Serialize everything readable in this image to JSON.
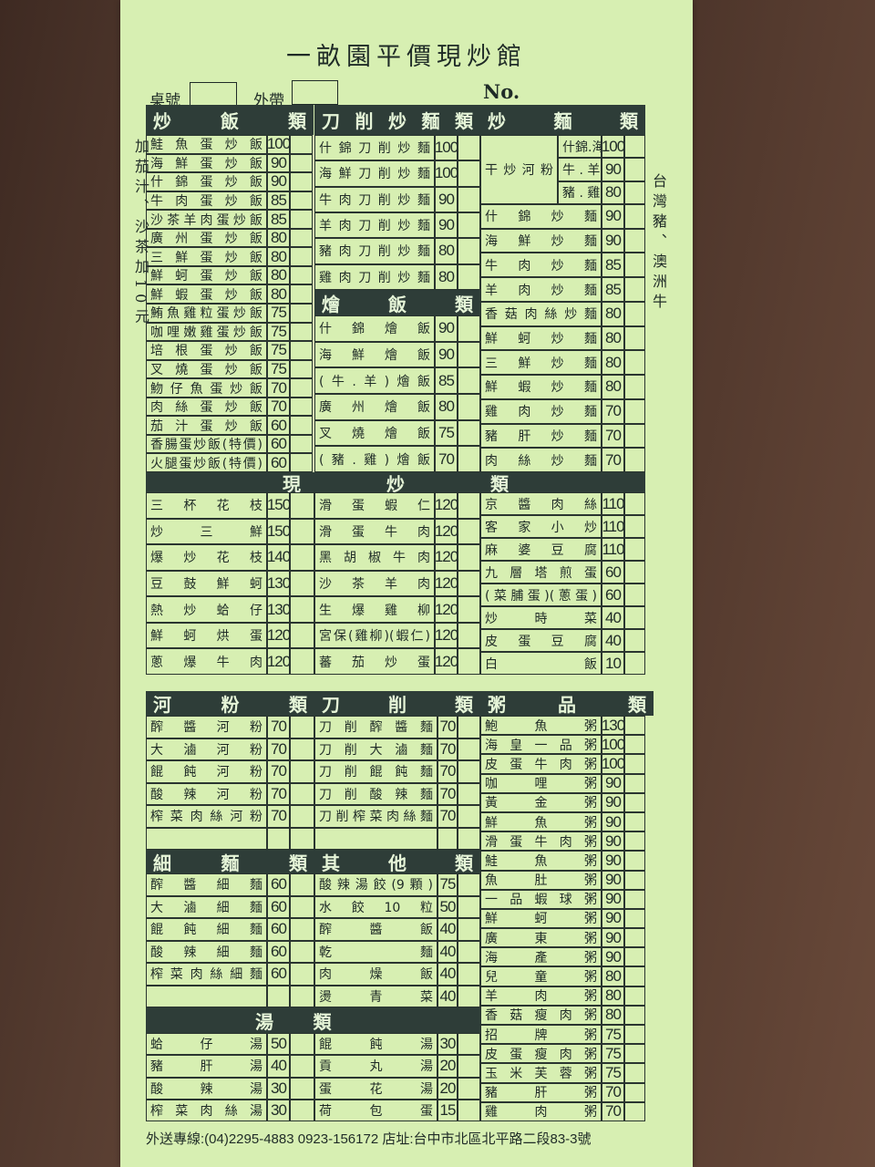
{
  "header": {
    "title": "一畝園平價現炒館",
    "table_label": "桌號",
    "takeout_label": "外帶",
    "no_label": "No."
  },
  "side_notes": {
    "left": "加茄汁、沙茶加10元",
    "right": "台灣豬、澳洲牛"
  },
  "fried_rice": {
    "title": "炒飯類",
    "items": [
      {
        "name": "鮭魚蛋炒飯",
        "price": "100"
      },
      {
        "name": "海鮮蛋炒飯",
        "price": "90"
      },
      {
        "name": "什錦蛋炒飯",
        "price": "90"
      },
      {
        "name": "牛肉蛋炒飯",
        "price": "85"
      },
      {
        "name": "沙茶羊肉蛋炒飯",
        "price": "85"
      },
      {
        "name": "廣州蛋炒飯",
        "price": "80"
      },
      {
        "name": "三鮮蛋炒飯",
        "price": "80"
      },
      {
        "name": "鮮蚵蛋炒飯",
        "price": "80"
      },
      {
        "name": "鮮蝦蛋炒飯",
        "price": "80"
      },
      {
        "name": "鮪魚雞粒蛋炒飯",
        "price": "75"
      },
      {
        "name": "咖哩嫩雞蛋炒飯",
        "price": "75"
      },
      {
        "name": "培根蛋炒飯",
        "price": "75"
      },
      {
        "name": "叉燒蛋炒飯",
        "price": "75"
      },
      {
        "name": "魩仔魚蛋炒飯",
        "price": "70"
      },
      {
        "name": "肉絲蛋炒飯",
        "price": "70"
      },
      {
        "name": "茄汁蛋炒飯",
        "price": "60"
      },
      {
        "name": "香腸蛋炒飯(特價)",
        "price": "60"
      },
      {
        "name": "火腿蛋炒飯(特價)",
        "price": "60"
      }
    ]
  },
  "knife_fried_noodles": {
    "title": "刀削炒麵類",
    "items": [
      {
        "name": "什錦刀削炒麵",
        "price": "100"
      },
      {
        "name": "海鮮刀削炒麵",
        "price": "100"
      },
      {
        "name": "牛肉刀削炒麵",
        "price": "90"
      },
      {
        "name": "羊肉刀削炒麵",
        "price": "90"
      },
      {
        "name": "豬肉刀削炒麵",
        "price": "80"
      },
      {
        "name": "雞肉刀削炒麵",
        "price": "80"
      }
    ]
  },
  "braised_rice": {
    "title": "燴飯類",
    "items": [
      {
        "name": "什錦燴飯",
        "price": "90"
      },
      {
        "name": "海鮮燴飯",
        "price": "90"
      },
      {
        "name": "(牛.羊)燴飯",
        "price": "85"
      },
      {
        "name": "廣州燴飯",
        "price": "80"
      },
      {
        "name": "叉燒燴飯",
        "price": "75"
      },
      {
        "name": "(豬.雞)燴飯",
        "price": "70"
      }
    ]
  },
  "fried_noodles": {
    "title": "炒麵類",
    "hefen": {
      "label": "干炒河粉",
      "options": [
        {
          "name": "什錦.海鮮",
          "price": "100"
        },
        {
          "name": "牛 . 羊",
          "price": "90"
        },
        {
          "name": "豬 . 雞",
          "price": "80"
        }
      ]
    },
    "items": [
      {
        "name": "什錦炒麵",
        "price": "90"
      },
      {
        "name": "海鮮炒麵",
        "price": "90"
      },
      {
        "name": "牛肉炒麵",
        "price": "85"
      },
      {
        "name": "羊肉炒麵",
        "price": "85"
      },
      {
        "name": "香菇肉絲炒麵",
        "price": "80"
      },
      {
        "name": "鮮蚵炒麵",
        "price": "80"
      },
      {
        "name": "三鮮炒麵",
        "price": "80"
      },
      {
        "name": "鮮蝦炒麵",
        "price": "80"
      },
      {
        "name": "雞肉炒麵",
        "price": "70"
      },
      {
        "name": "豬肝炒麵",
        "price": "70"
      },
      {
        "name": "肉絲炒麵",
        "price": "70"
      }
    ]
  },
  "stir_fry": {
    "title": "現炒類",
    "columns": [
      [
        {
          "name": "三杯花枝",
          "price": "150"
        },
        {
          "name": "炒三鮮",
          "price": "150"
        },
        {
          "name": "爆炒花枝",
          "price": "140"
        },
        {
          "name": "豆鼓鮮蚵",
          "price": "130"
        },
        {
          "name": "熱炒蛤仔",
          "price": "130"
        },
        {
          "name": "鮮蚵烘蛋",
          "price": "120"
        },
        {
          "name": "蔥爆牛肉",
          "price": "120"
        }
      ],
      [
        {
          "name": "滑蛋蝦仁",
          "price": "120"
        },
        {
          "name": "滑蛋牛肉",
          "price": "120"
        },
        {
          "name": "黑胡椒牛肉",
          "price": "120"
        },
        {
          "name": "沙茶羊肉",
          "price": "120"
        },
        {
          "name": "生爆雞柳",
          "price": "120"
        },
        {
          "name": "宮保(雞柳)(蝦仁)",
          "price": "120"
        },
        {
          "name": "蕃茄炒蛋",
          "price": "120"
        }
      ],
      [
        {
          "name": "京醬肉絲",
          "price": "110"
        },
        {
          "name": "客家小炒",
          "price": "110"
        },
        {
          "name": "麻婆豆腐",
          "price": "110"
        },
        {
          "name": "九層塔煎蛋",
          "price": "60"
        },
        {
          "name": "(菜脯蛋)(蔥蛋)",
          "price": "60"
        },
        {
          "name": "炒時菜",
          "price": "40"
        },
        {
          "name": "皮蛋豆腐",
          "price": "40"
        },
        {
          "name": "白飯",
          "price": "10"
        }
      ]
    ]
  },
  "rice_noodles": {
    "title": "河粉類",
    "items": [
      {
        "name": "醡醬河粉",
        "price": "70"
      },
      {
        "name": "大滷河粉",
        "price": "70"
      },
      {
        "name": "餛飩河粉",
        "price": "70"
      },
      {
        "name": "酸辣河粉",
        "price": "70"
      },
      {
        "name": "榨菜肉絲河粉",
        "price": "70"
      },
      {
        "name": "",
        "price": ""
      }
    ]
  },
  "knife_noodles": {
    "title": "刀削類",
    "items": [
      {
        "name": "刀削醡醬麵",
        "price": "70"
      },
      {
        "name": "刀削大滷麵",
        "price": "70"
      },
      {
        "name": "刀削餛飩麵",
        "price": "70"
      },
      {
        "name": "刀削酸辣麵",
        "price": "70"
      },
      {
        "name": "刀削榨菜肉絲麵",
        "price": "70"
      },
      {
        "name": "",
        "price": ""
      }
    ]
  },
  "thin_noodles": {
    "title": "細麵類",
    "items": [
      {
        "name": "醡醬細麵",
        "price": "60"
      },
      {
        "name": "大滷細麵",
        "price": "60"
      },
      {
        "name": "餛飩細麵",
        "price": "60"
      },
      {
        "name": "酸辣細麵",
        "price": "60"
      },
      {
        "name": "榨菜肉絲細麵",
        "price": "60"
      },
      {
        "name": "",
        "price": ""
      }
    ]
  },
  "others": {
    "title": "其他類",
    "items": [
      {
        "name": "酸辣湯餃(9顆)",
        "price": "75"
      },
      {
        "name": "水餃10粒",
        "price": "50"
      },
      {
        "name": "醡醬飯",
        "price": "40"
      },
      {
        "name": "乾麵",
        "price": "40"
      },
      {
        "name": "肉燥飯",
        "price": "40"
      },
      {
        "name": "燙青菜",
        "price": "40"
      }
    ]
  },
  "soup": {
    "title_left": "湯",
    "title_right": "類",
    "columns": [
      [
        {
          "name": "蛤仔湯",
          "price": "50"
        },
        {
          "name": "豬肝湯",
          "price": "40"
        },
        {
          "name": "酸辣湯",
          "price": "30"
        },
        {
          "name": "榨菜肉絲湯",
          "price": "30"
        }
      ],
      [
        {
          "name": "餛飩湯",
          "price": "30"
        },
        {
          "name": "貢丸湯",
          "price": "20"
        },
        {
          "name": "蛋花湯",
          "price": "20"
        },
        {
          "name": "荷包蛋",
          "price": "15"
        }
      ]
    ]
  },
  "porridge": {
    "title": "粥品類",
    "items": [
      {
        "name": "鮑魚粥",
        "price": "130"
      },
      {
        "name": "海皇一品粥",
        "price": "100"
      },
      {
        "name": "皮蛋牛肉粥",
        "price": "100"
      },
      {
        "name": "咖哩粥",
        "price": "90"
      },
      {
        "name": "黃金粥",
        "price": "90"
      },
      {
        "name": "鮮魚粥",
        "price": "90"
      },
      {
        "name": "滑蛋牛肉粥",
        "price": "90"
      },
      {
        "name": "鮭魚粥",
        "price": "90"
      },
      {
        "name": "魚肚粥",
        "price": "90"
      },
      {
        "name": "一品蝦球粥",
        "price": "90"
      },
      {
        "name": "鮮蚵粥",
        "price": "90"
      },
      {
        "name": "廣東粥",
        "price": "90"
      },
      {
        "name": "海產粥",
        "price": "90"
      },
      {
        "name": "兒童粥",
        "price": "80"
      },
      {
        "name": "羊肉粥",
        "price": "80"
      },
      {
        "name": "香菇瘦肉粥",
        "price": "80"
      },
      {
        "name": "招牌粥",
        "price": "75"
      },
      {
        "name": "皮蛋瘦肉粥",
        "price": "75"
      },
      {
        "name": "玉米芙蓉粥",
        "price": "75"
      },
      {
        "name": "豬肝粥",
        "price": "70"
      },
      {
        "name": "雞肉粥",
        "price": "70"
      }
    ]
  },
  "footer": {
    "text": "外送專線:(04)2295-4883 0923-156172 店址:台中市北區北平路二段83-3號"
  },
  "colors": {
    "paper": "#d7efb2",
    "header_band": "#2e3d38",
    "ink": "#1f2b27"
  }
}
